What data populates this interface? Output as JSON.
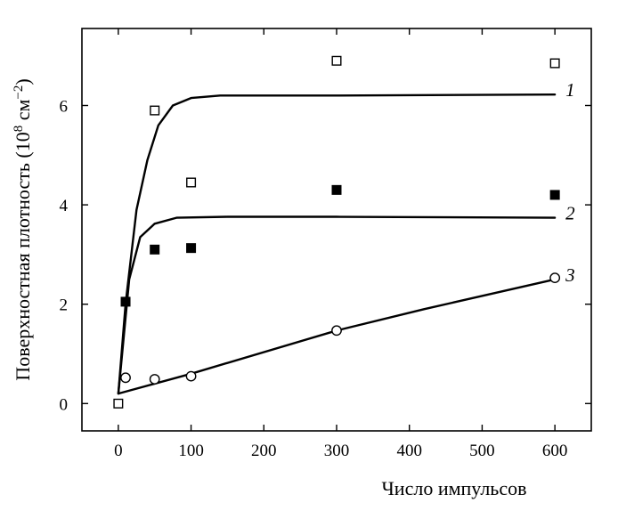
{
  "chart_data": {
    "type": "scatter",
    "title": "",
    "xlabel": "Число импульсов",
    "ylabel": {
      "main": "Поверхностная плотность (10",
      "exp1": "8",
      "mid": " см",
      "exp2": "−2",
      "end": ")"
    },
    "xlim": [
      -50,
      650
    ],
    "ylim": [
      -0.55,
      7.55
    ],
    "xticks": [
      0,
      100,
      200,
      300,
      400,
      500,
      600
    ],
    "yticks": [
      0,
      2,
      4,
      6
    ],
    "grid": false,
    "legend": "none",
    "series": [
      {
        "label": "1",
        "marker": "open-square",
        "points": [
          [
            0,
            0
          ],
          [
            50,
            5.9
          ],
          [
            100,
            4.45
          ],
          [
            300,
            6.9
          ],
          [
            600,
            6.85
          ]
        ],
        "fit": [
          [
            0,
            0.2
          ],
          [
            10,
            2.0
          ],
          [
            25,
            3.9
          ],
          [
            40,
            4.9
          ],
          [
            55,
            5.6
          ],
          [
            75,
            6.0
          ],
          [
            100,
            6.15
          ],
          [
            140,
            6.2
          ],
          [
            300,
            6.2
          ],
          [
            600,
            6.22
          ]
        ]
      },
      {
        "label": "2",
        "marker": "filled-square",
        "points": [
          [
            10,
            2.05
          ],
          [
            50,
            3.1
          ],
          [
            100,
            3.13
          ],
          [
            300,
            4.3
          ],
          [
            600,
            4.2
          ]
        ],
        "fit": [
          [
            0,
            0.2
          ],
          [
            15,
            2.5
          ],
          [
            30,
            3.35
          ],
          [
            50,
            3.62
          ],
          [
            80,
            3.74
          ],
          [
            150,
            3.76
          ],
          [
            300,
            3.76
          ],
          [
            600,
            3.74
          ]
        ]
      },
      {
        "label": "3",
        "marker": "open-circle",
        "points": [
          [
            10,
            0.52
          ],
          [
            50,
            0.49
          ],
          [
            100,
            0.55
          ],
          [
            300,
            1.47
          ],
          [
            600,
            2.53
          ]
        ],
        "fit": [
          [
            0,
            0.2
          ],
          [
            100,
            0.6
          ],
          [
            300,
            1.47
          ],
          [
            420,
            1.9
          ],
          [
            600,
            2.5
          ]
        ]
      }
    ],
    "colors": {
      "ink": "#000000",
      "background": "#ffffff"
    }
  }
}
